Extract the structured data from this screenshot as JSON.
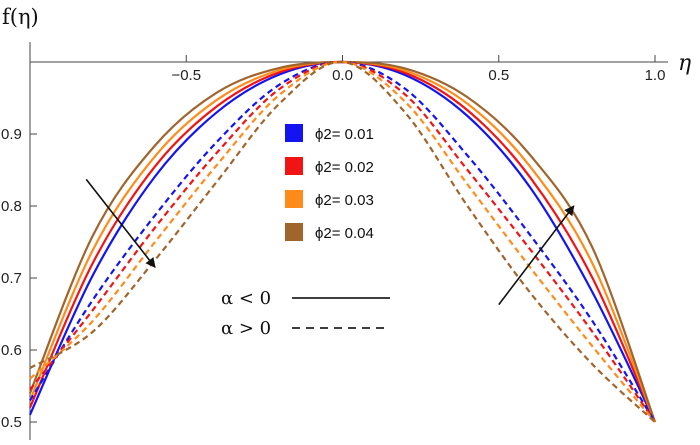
{
  "chart_data": {
    "type": "line",
    "xlabel": "η",
    "ylabel": "f(η)",
    "xlim": [
      -1.0,
      1.0
    ],
    "ylim": [
      0.48,
      1.0
    ],
    "x_ticks": [
      {
        "value": -0.5,
        "label": "−0.5"
      },
      {
        "value": 0.0,
        "label": "0.0"
      },
      {
        "value": 0.5,
        "label": "0.5"
      },
      {
        "value": 1.0,
        "label": "1.0"
      }
    ],
    "y_ticks": [
      {
        "value": 0.5,
        "label": "0.5"
      },
      {
        "value": 0.6,
        "label": "0.6"
      },
      {
        "value": 0.7,
        "label": "0.7"
      },
      {
        "value": 0.8,
        "label": "0.8"
      },
      {
        "value": 0.9,
        "label": "0.9"
      }
    ],
    "x": [
      -1.0,
      -0.8,
      -0.6,
      -0.4,
      -0.2,
      0.0,
      0.2,
      0.4,
      0.6,
      0.8,
      1.0
    ],
    "legend": [
      {
        "label": "ϕ2= 0.01",
        "color": "#1414f0"
      },
      {
        "label": "ϕ2= 0.02",
        "color": "#f01414"
      },
      {
        "label": "ϕ2= 0.03",
        "color": "#ff8c1a"
      },
      {
        "label": "ϕ2= 0.04",
        "color": "#a0642d"
      }
    ],
    "line_styles": [
      {
        "label": "α < 0",
        "dash": "solid"
      },
      {
        "label": "α > 0",
        "dash": "dashed"
      }
    ],
    "series": [
      {
        "phi2": 0.01,
        "alpha": "negative",
        "color": "#1414f0",
        "dash": "solid",
        "values": [
          0.51,
          0.703,
          0.841,
          0.931,
          0.983,
          1.0,
          0.982,
          0.925,
          0.826,
          0.68,
          0.5
        ]
      },
      {
        "phi2": 0.02,
        "alpha": "negative",
        "color": "#f01414",
        "dash": "solid",
        "values": [
          0.52,
          0.72,
          0.855,
          0.939,
          0.986,
          1.0,
          0.985,
          0.933,
          0.84,
          0.7,
          0.5
        ]
      },
      {
        "phi2": 0.03,
        "alpha": "negative",
        "color": "#ff8c1a",
        "dash": "solid",
        "values": [
          0.53,
          0.738,
          0.869,
          0.948,
          0.989,
          1.0,
          0.988,
          0.942,
          0.855,
          0.72,
          0.5
        ]
      },
      {
        "phi2": 0.04,
        "alpha": "negative",
        "color": "#a0642d",
        "dash": "solid",
        "values": [
          0.54,
          0.758,
          0.884,
          0.958,
          0.992,
          1.0,
          0.991,
          0.951,
          0.871,
          0.742,
          0.5
        ]
      },
      {
        "phi2": 0.01,
        "alpha": "positive",
        "color": "#1414f0",
        "dash": "dashed",
        "values": [
          0.53,
          0.669,
          0.787,
          0.89,
          0.969,
          1.0,
          0.963,
          0.87,
          0.76,
          0.64,
          0.5
        ]
      },
      {
        "phi2": 0.02,
        "alpha": "positive",
        "color": "#f01414",
        "dash": "dashed",
        "values": [
          0.545,
          0.655,
          0.77,
          0.875,
          0.963,
          1.0,
          0.955,
          0.85,
          0.74,
          0.625,
          0.5
        ]
      },
      {
        "phi2": 0.03,
        "alpha": "positive",
        "color": "#ff8c1a",
        "dash": "dashed",
        "values": [
          0.56,
          0.64,
          0.75,
          0.858,
          0.955,
          1.0,
          0.945,
          0.83,
          0.715,
          0.605,
          0.5
        ]
      },
      {
        "phi2": 0.04,
        "alpha": "positive",
        "color": "#a0642d",
        "dash": "dashed",
        "values": [
          0.575,
          0.625,
          0.725,
          0.835,
          0.943,
          1.0,
          0.93,
          0.8,
          0.68,
          0.58,
          0.5
        ]
      }
    ],
    "grid": false,
    "legend_position": "center",
    "annotations": [
      {
        "type": "arrow",
        "from": [
          -0.82,
          0.837
        ],
        "to": [
          -0.6,
          0.715
        ]
      },
      {
        "type": "arrow",
        "from": [
          0.5,
          0.663
        ],
        "to": [
          0.74,
          0.8
        ]
      }
    ]
  }
}
